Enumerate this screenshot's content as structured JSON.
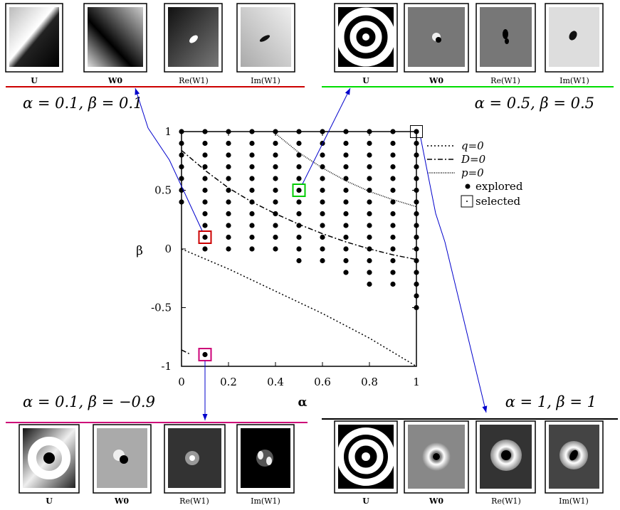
{
  "chart_data": {
    "type": "scatter",
    "xlabel": "α",
    "ylabel": "β",
    "xlim": [
      0,
      1
    ],
    "ylim": [
      -1,
      1
    ],
    "x_ticks": [
      "0",
      "0.2",
      "0.4",
      "0.6",
      "0.8",
      "1"
    ],
    "y_ticks": [
      "1",
      "0.5",
      "0",
      "-0.5",
      "-1"
    ],
    "legend_position": "right",
    "grid": false,
    "legend": {
      "q": "q=0",
      "d": "D=0",
      "p": "p=0",
      "explored": "explored",
      "selected": "selected"
    },
    "explored_columns": [
      {
        "alpha": 0.0,
        "beta_min": 0.4,
        "beta_max": 1.0
      },
      {
        "alpha": 0.1,
        "beta_min": 0.0,
        "beta_max": 1.0
      },
      {
        "alpha": 0.2,
        "beta_min": 0.0,
        "beta_max": 1.0
      },
      {
        "alpha": 0.3,
        "beta_min": 0.0,
        "beta_max": 1.0
      },
      {
        "alpha": 0.4,
        "beta_min": 0.0,
        "beta_max": 1.0
      },
      {
        "alpha": 0.5,
        "beta_min": -0.1,
        "beta_max": 1.0
      },
      {
        "alpha": 0.6,
        "beta_min": -0.1,
        "beta_max": 1.0
      },
      {
        "alpha": 0.7,
        "beta_min": -0.2,
        "beta_max": 1.0
      },
      {
        "alpha": 0.8,
        "beta_min": -0.3,
        "beta_max": 1.0
      },
      {
        "alpha": 0.9,
        "beta_min": -0.3,
        "beta_max": 1.0
      },
      {
        "alpha": 1.0,
        "beta_min": -0.5,
        "beta_max": 1.0
      }
    ],
    "explored_extra": [
      {
        "alpha": 0.1,
        "beta": -0.9
      }
    ],
    "selected": [
      {
        "alpha": 0.1,
        "beta": 0.1,
        "color": "#cc0000"
      },
      {
        "alpha": 0.5,
        "beta": 0.5,
        "color": "#00cc00"
      },
      {
        "alpha": 0.1,
        "beta": -0.9,
        "color": "#cc0077"
      },
      {
        "alpha": 1.0,
        "beta": 1.0,
        "color": "#000000"
      }
    ],
    "curves": {
      "q_zero": [
        [
          0.0,
          0.0
        ],
        [
          0.2,
          -0.17
        ],
        [
          0.4,
          -0.36
        ],
        [
          0.6,
          -0.55
        ],
        [
          0.8,
          -0.76
        ],
        [
          1.0,
          -1.0
        ]
      ],
      "d_zero": [
        [
          0.0,
          0.84
        ],
        [
          0.1,
          0.67
        ],
        [
          0.2,
          0.52
        ],
        [
          0.3,
          0.4
        ],
        [
          0.4,
          0.3
        ],
        [
          0.5,
          0.21
        ],
        [
          0.6,
          0.13
        ],
        [
          0.7,
          0.06
        ],
        [
          0.8,
          0.0
        ],
        [
          0.9,
          -0.05
        ],
        [
          1.0,
          -0.09
        ]
      ],
      "d_zero_lower": [
        [
          0.0,
          -0.86
        ],
        [
          0.04,
          -0.9
        ]
      ],
      "p_zero": [
        [
          0.39,
          1.0
        ],
        [
          0.5,
          0.82
        ],
        [
          0.6,
          0.69
        ],
        [
          0.7,
          0.58
        ],
        [
          0.8,
          0.49
        ],
        [
          0.9,
          0.42
        ],
        [
          1.0,
          0.36
        ]
      ]
    }
  },
  "panels": {
    "top_left": {
      "title": "α = 0.1, β = 0.1",
      "line_color": "#cc0000",
      "captions": [
        "U",
        "W0",
        "Re(W1)",
        "Im(W1)"
      ]
    },
    "top_right": {
      "title": "α = 0.5, β = 0.5",
      "line_color": "#00dd00",
      "captions": [
        "U",
        "W0",
        "Re(W1)",
        "Im(W1)"
      ]
    },
    "bottom_left": {
      "title": "α = 0.1, β = −0.9",
      "line_color": "#cc0077",
      "captions": [
        "U",
        "W0",
        "Re(W1)",
        "Im(W1)"
      ]
    },
    "bottom_right": {
      "title": "α = 1, β = 1",
      "line_color": "#000000",
      "captions": [
        "U",
        "W0",
        "Re(W1)",
        "Im(W1)"
      ]
    }
  },
  "connector_color": "#0000cc"
}
